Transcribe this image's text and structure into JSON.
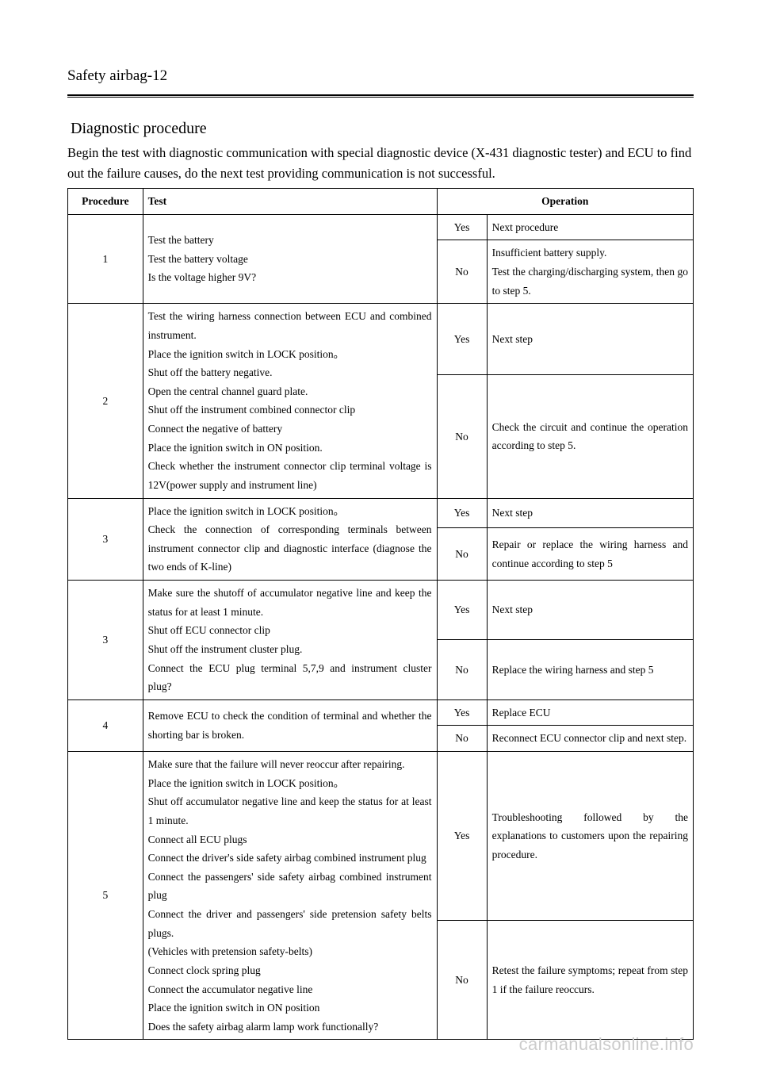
{
  "header": {
    "title": "Safety airbag-12"
  },
  "section": {
    "title": "Diagnostic procedure",
    "intro": "Begin the test with diagnostic communication with special diagnostic device (X-431 diagnostic tester) and ECU to find out the failure causes, do the next test providing communication is not successful."
  },
  "table": {
    "headers": {
      "procedure": "Procedure",
      "test": "Test",
      "operation": "Operation"
    },
    "rows": [
      {
        "proc": "1",
        "test": "Test the battery\nTest the battery voltage\nIs the voltage higher 9V?",
        "yes": "Yes",
        "yes_op": "Next procedure",
        "no": "No",
        "no_op": "Insufficient battery supply.\nTest the charging/discharging system, then go to step 5."
      },
      {
        "proc": "2",
        "test": "Test the wiring harness connection between ECU and combined instrument.\nPlace the ignition switch in LOCK position。\nShut off the battery negative.\nOpen the central channel guard plate.\nShut off the instrument combined connector clip\nConnect the negative of battery\nPlace the ignition switch in ON position.\nCheck whether the instrument connector clip terminal voltage is 12V(power supply and instrument line)",
        "yes": "Yes",
        "yes_op": "Next step",
        "no": "No",
        "no_op": "Check the circuit and continue the operation according to step 5."
      },
      {
        "proc": "3",
        "test": "Place the ignition switch in LOCK position。\nCheck the connection of corresponding terminals between instrument connector clip and diagnostic interface (diagnose the two ends of K-line)",
        "yes": "Yes",
        "yes_op": "Next step",
        "no": "No",
        "no_op": "Repair or replace the wiring harness and continue according to step 5"
      },
      {
        "proc": "3",
        "test": "Make sure the shutoff of accumulator negative line and keep the status for at least 1 minute.\nShut off ECU connector clip\nShut off the instrument cluster plug.\nConnect the ECU plug terminal 5,7,9 and instrument cluster plug?",
        "yes": "Yes",
        "yes_op": "Next step",
        "no": "No",
        "no_op": "Replace the wiring harness and step 5"
      },
      {
        "proc": "4",
        "test": "Remove ECU to check the condition of terminal and whether the shorting bar is broken.",
        "yes": "Yes",
        "yes_op": "Replace ECU",
        "no": "No",
        "no_op": "Reconnect ECU connector clip and next step."
      },
      {
        "proc": "5",
        "test": "Make sure that the failure will never reoccur after repairing.\nPlace the ignition switch in LOCK position。\nShut off accumulator negative line and keep the status for at least 1 minute.\nConnect all ECU plugs\nConnect the driver's side safety airbag combined instrument plug\nConnect the passengers' side safety airbag combined instrument plug\nConnect the driver and passengers' side pretension safety belts plugs.\n(Vehicles with pretension safety-belts)\nConnect clock spring plug\nConnect the accumulator negative line\nPlace the ignition switch in ON position\nDoes the safety airbag alarm lamp work functionally?",
        "yes": "Yes",
        "yes_op": "Troubleshooting followed by the explanations to customers upon the repairing procedure.",
        "no": "No",
        "no_op": "Retest the failure symptoms; repeat from step 1 if the failure reoccurs."
      }
    ]
  },
  "watermark": "carmanualsonline.info"
}
